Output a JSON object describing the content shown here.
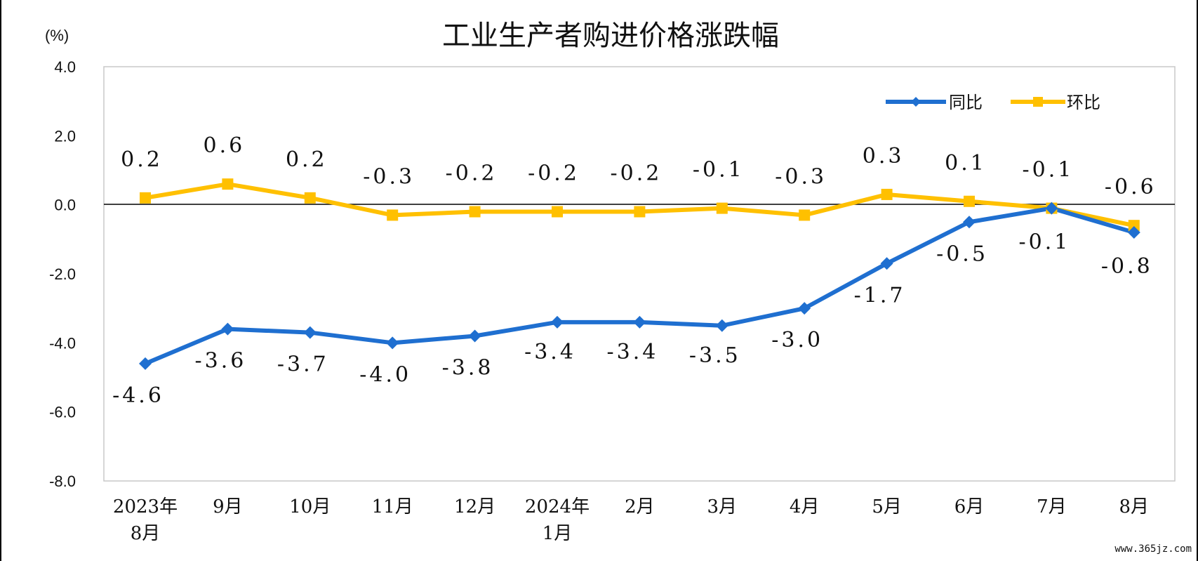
{
  "watermark": "www.365jz.com",
  "colors": {
    "yoy": "#1F6FD0",
    "mom": "#FFC000",
    "grid": "#000000",
    "plot_border": "#C8C8C8"
  },
  "chart_data": {
    "type": "line",
    "title": "工业生产者购进价格涨跌幅",
    "unit_label": "(%)",
    "ylim": [
      -8.0,
      4.0
    ],
    "yticks": [
      "4.0",
      "2.0",
      "0.0",
      "-2.0",
      "-4.0",
      "-6.0",
      "-8.0"
    ],
    "categories": [
      [
        "2023年",
        "8月"
      ],
      [
        "9月"
      ],
      [
        "10月"
      ],
      [
        "11月"
      ],
      [
        "12月"
      ],
      [
        "2024年",
        "1月"
      ],
      [
        "2月"
      ],
      [
        "3月"
      ],
      [
        "4月"
      ],
      [
        "5月"
      ],
      [
        "6月"
      ],
      [
        "7月"
      ],
      [
        "8月"
      ]
    ],
    "legend_position": "top-right",
    "series": [
      {
        "name": "同比",
        "color": "#1F6FD0",
        "marker": "diamond",
        "values": [
          -4.6,
          -3.6,
          -3.7,
          -4.0,
          -3.8,
          -3.4,
          -3.4,
          -3.5,
          -3.0,
          -1.7,
          -0.5,
          -0.1,
          -0.8
        ],
        "labels": [
          "-4.6",
          "-3.6",
          "-3.7",
          "-4.0",
          "-3.8",
          "-3.4",
          "-3.4",
          "-3.5",
          "-3.0",
          "-1.7",
          "-0.5",
          "-0.1",
          "-0.8"
        ]
      },
      {
        "name": "环比",
        "color": "#FFC000",
        "marker": "square",
        "values": [
          0.2,
          0.6,
          0.2,
          -0.3,
          -0.2,
          -0.2,
          -0.2,
          -0.1,
          -0.3,
          0.3,
          0.1,
          -0.1,
          -0.6
        ],
        "labels": [
          "0.2",
          "0.6",
          "0.2",
          "-0.3",
          "-0.2",
          "-0.2",
          "-0.2",
          "-0.1",
          "-0.3",
          "0.3",
          "0.1",
          "-0.1",
          "-0.6"
        ]
      }
    ]
  }
}
